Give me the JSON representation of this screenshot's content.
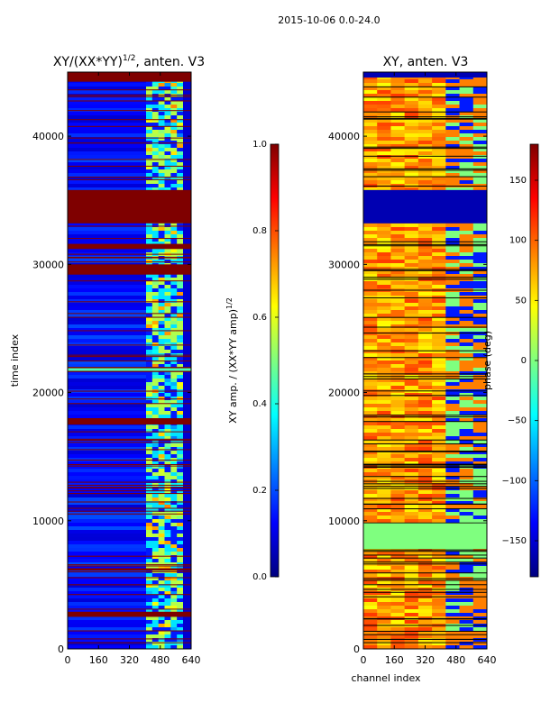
{
  "suptitle": "2015-10-06 0.0-24.0",
  "colors": {
    "jet": [
      "#00007f",
      "#0000ff",
      "#007fff",
      "#00ffff",
      "#7fff7f",
      "#ffff00",
      "#ff7f00",
      "#ff0000",
      "#7f0000"
    ],
    "band": "#7f0000",
    "flagged_phase": "#7fff7f"
  },
  "chart_data": [
    {
      "type": "heatmap",
      "title_main": "XY/(XX*YY)",
      "title_sup": "1/2",
      "title_tail": ", anten. V3",
      "xlabel": "",
      "ylabel": "time index",
      "xlim": [
        0,
        640
      ],
      "ylim": [
        0,
        45000
      ],
      "xticks": [
        "0",
        "160",
        "320",
        "480",
        "640"
      ],
      "yticks": [
        "0",
        "10000",
        "20000",
        "30000",
        "40000"
      ],
      "colorbar": {
        "label_main": "XY amp. / (XX*YY amp)",
        "label_sup": "1/2",
        "range": [
          0.0,
          1.0
        ],
        "ticks": [
          "0.0",
          "0.2",
          "0.4",
          "0.6",
          "0.8",
          "1.0"
        ]
      },
      "saturated_bands": [
        [
          44250,
          45000
        ],
        [
          35800,
          33200
        ],
        [
          31600,
          31200
        ],
        [
          30000,
          29200
        ],
        [
          22000,
          21600
        ],
        [
          18000,
          17500
        ],
        [
          2900,
          2500
        ]
      ]
    },
    {
      "type": "heatmap",
      "title_main": "XY, anten. V3",
      "xlabel": "channel index",
      "ylabel": "",
      "xlim": [
        0,
        640
      ],
      "ylim": [
        0,
        45000
      ],
      "xticks": [
        "0",
        "160",
        "320",
        "480",
        "640"
      ],
      "yticks": [
        "0",
        "10000",
        "20000",
        "30000",
        "40000"
      ],
      "colorbar": {
        "label_main": "phase (deg)",
        "range": [
          -180,
          180
        ],
        "ticks": [
          "−150",
          "−100",
          "−50",
          "0",
          "50",
          "100",
          "150"
        ]
      },
      "flagged_bands": [
        [
          35800,
          33200
        ],
        [
          9800,
          7800
        ]
      ]
    }
  ]
}
